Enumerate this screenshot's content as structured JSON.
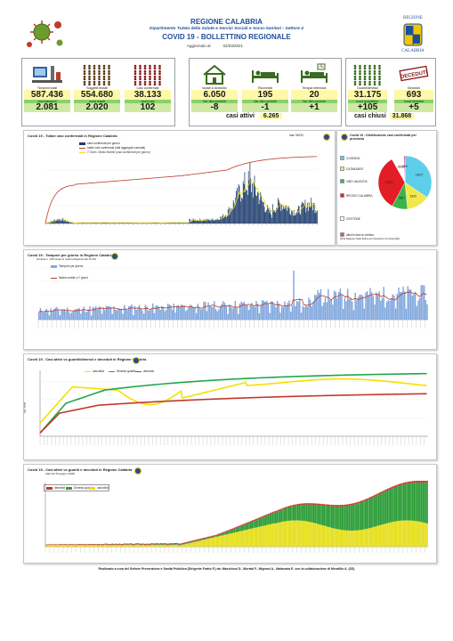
{
  "header": {
    "region": "REGIONE CALABRIA",
    "department": "Dipartimento Tutela della Salute e Servizi Sociali e Socio-Sanitari - Settore 4",
    "bulletin": "COVID 19 - BOLLETTINO REGIONALE",
    "updated_label": "Aggiornato al",
    "updated_date": "02/03/2021",
    "logo_right_top": "REGIONE",
    "logo_right_bottom": "CALABRIA"
  },
  "cards": [
    {
      "label": "Tamponi totali",
      "value": "587.436",
      "sub_label": "nuovi tamponi",
      "sub_value": "2.081",
      "icon": "lab-test-icon"
    },
    {
      "label": "Soggetti testati",
      "value": "554.680",
      "sub_label": "nuovi testati",
      "sub_value": "2.020",
      "icon": "people-grid-icon"
    },
    {
      "label": "Casi confermati",
      "value": "38.133",
      "sub_label": "nuovi casi",
      "sub_value": "102",
      "icon": "cases-grid-icon"
    },
    {
      "label": "Isolati a domicilio",
      "value": "6.050",
      "sub_label": "Var. rilev.corrente",
      "sub_value": "-8",
      "icon": "house-icon"
    },
    {
      "label": "Ricoverati",
      "value": "195",
      "sub_label": "Var. rilev.corrente",
      "sub_value": "-1",
      "icon": "hospital-bed-icon"
    },
    {
      "label": "Terapia intensiva",
      "value": "20",
      "sub_label": "Var. rilev.corrente",
      "sub_value": "+1",
      "icon": "icu-bed-icon"
    },
    {
      "label": "Guariti/dimessi",
      "value": "31.175",
      "sub_label": "nuovi guariti/dim.",
      "sub_value": "+105",
      "icon": "recovered-icon"
    },
    {
      "label": "Deceduti",
      "value": "693",
      "sub_label": "nuovi deceduti",
      "sub_value": "+5",
      "icon": "deceased-stamp-icon"
    }
  ],
  "deceased_stamp": "DECEDUTI",
  "active": {
    "label": "casi attivi",
    "value": "6.265"
  },
  "closed": {
    "label": "casi chiusi",
    "value": "31.868"
  },
  "panel1": {
    "title": "Covid 19 - Totale casi confermati in Regione Calabria",
    "legend": [
      "casi confermati per giorno",
      "totale casi confermati (dati aggregati cumulati)",
      "7 Giorn. Media Mobile (casi confermati per giorno)"
    ],
    "max_label": "max",
    "max_value": "38133",
    "colors": {
      "bars": "#1f3d6e",
      "cumulative": "#c0392b",
      "moving_avg": "#f5e000"
    }
  },
  "panel2": {
    "title": "Covid 19 - Distribuzione casi confermati per provincia",
    "provinces": [
      {
        "name": "COSENZA",
        "value": 13027,
        "color": "#5ecfe8"
      },
      {
        "name": "CATANZARO",
        "value": 5329,
        "color": "#f2e84b"
      },
      {
        "name": "VIBO VALENTIA",
        "value": 3587,
        "color": "#3bb54a"
      },
      {
        "name": "REGGIO CALABRIA",
        "value": 12973,
        "color": "#e21d25"
      },
      {
        "name": "CROTONE",
        "value": 2858,
        "color": "#ffffff"
      },
      {
        "name": "altro/in fase di verifica",
        "value": 359,
        "color": "#d94aa0"
      }
    ],
    "note": "(Altra Regione/ Stato Estero e/o rilevazioni non disponibili)"
  },
  "panel3": {
    "title": "Covid 19 - Tamponi per giorno in Regione Calabria",
    "subtitle": "(include n. 250 tamponi rapidi antigenici del 10.10)",
    "legend": [
      "Tamponi per giorno",
      "Media mobile a 7 giorni"
    ]
  },
  "panel4": {
    "title": "Covid 19 - Casi attivi vs guariti/dimessi e deceduti in Regione Calabria",
    "legend": [
      "casi attivi",
      "Dimessi guariti",
      "deceduti"
    ],
    "ylabel": "log. scale"
  },
  "panel5": {
    "title": "Covid 19 - Casi attivi vs guariti e deceduti in Regione Calabria",
    "subtitle": "(dati dal 15 giugno 2020)",
    "legend": [
      "deceduti",
      "Dimessi guariti",
      "casi attivi"
    ]
  },
  "footer": "Realizzato a cura del Settore Prevenzione e Sanità Pubblica (Dirigente Fratto F.) da: Macchioni D., Mortati F., Mignosi A., Malacaria E. con la collaborazione di Mendillo A. (SS)",
  "chart_data": [
    {
      "type": "bar",
      "title": "Covid 19 - Distribuzione casi confermati per provincia",
      "categories": [
        "COSENZA",
        "CATANZARO",
        "VIBO VALENTIA",
        "REGGIO CALABRIA",
        "CROTONE",
        "altro/in fase di verifica"
      ],
      "values": [
        13027,
        5329,
        3587,
        12973,
        2858,
        359
      ]
    }
  ]
}
